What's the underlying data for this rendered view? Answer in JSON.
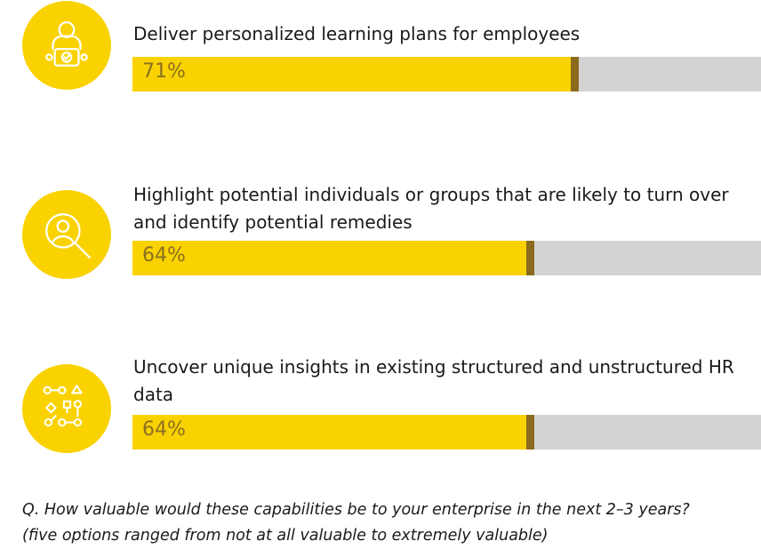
{
  "chart_data": {
    "type": "bar",
    "orientation": "horizontal",
    "categories": [
      "Deliver personalized learning plans for employees",
      "Highlight potential individuals or groups that are likely to turn over and identify potential remedies",
      "Uncover unique insights in existing structured and unstructured HR data"
    ],
    "values": [
      71,
      64,
      64
    ],
    "value_labels": [
      "71%",
      "64%",
      "64%"
    ],
    "xlim": [
      0,
      100
    ],
    "unit": "%",
    "icons": [
      "person-with-tablet-icon",
      "magnifier-person-icon",
      "data-nodes-flow-icon"
    ]
  },
  "footnote": {
    "line1": "Q. How valuable would these capabilities be to your enterprise in the next 2–3 years?",
    "line2": "(five options ranged from not at all valuable to extremely valuable)"
  },
  "colors": {
    "accent": "#f9d200",
    "cap": "#8b6a1e",
    "track": "#d3d3d3",
    "value_text": "#8a7020",
    "text": "#1a1a1a"
  }
}
